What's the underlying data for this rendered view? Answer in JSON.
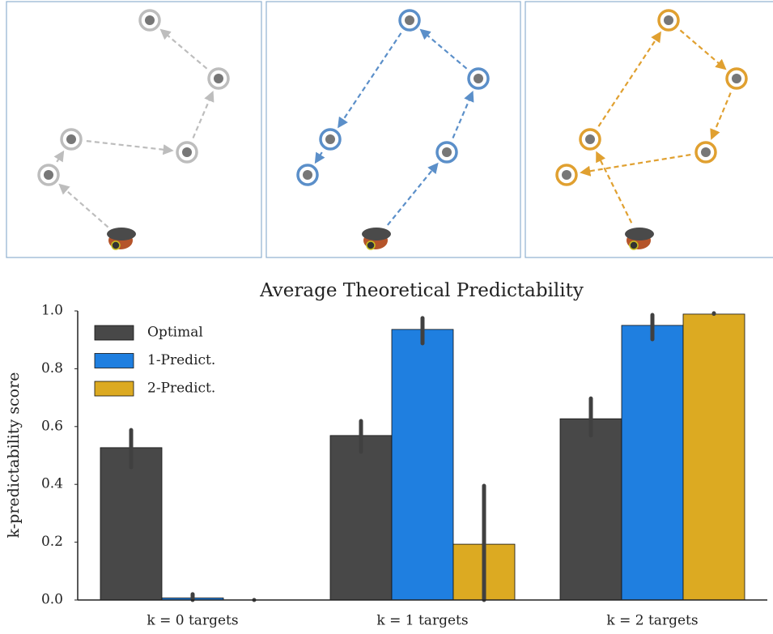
{
  "chart_data": {
    "type": "bar",
    "title": "Average Theoretical Predictability",
    "y_label": "k-predictability score",
    "categories": [
      "k = 0 targets",
      "k = 1 targets",
      "k = 2 targets"
    ],
    "series": [
      {
        "name": "Optimal",
        "color": "#484848",
        "values": [
          0.527,
          0.569,
          0.627
        ],
        "ci_low": [
          0.459,
          0.513,
          0.569
        ],
        "ci_high": [
          0.588,
          0.619,
          0.697
        ]
      },
      {
        "name": "1-Predict.",
        "color": "#1f7fe0",
        "values": [
          0.007,
          0.936,
          0.95
        ],
        "ci_low": [
          0,
          0.888,
          0.902
        ],
        "ci_high": [
          0.02,
          0.975,
          0.986
        ]
      },
      {
        "name": "2-Predict.",
        "color": "#dcaa22",
        "values": [
          0,
          0.193,
          0.989
        ],
        "ci_low": [
          0,
          0,
          0.99
        ],
        "ci_high": [
          0,
          0.395,
          0.992
        ]
      }
    ],
    "ylim": [
      0,
      1
    ],
    "yticks": [
      {
        "value": 0,
        "label": "0.0"
      },
      0.2,
      0.4,
      0.6,
      0.8,
      {
        "value": 1,
        "label": "1.0"
      }
    ],
    "grid": false,
    "legend": "upper-left"
  }
}
